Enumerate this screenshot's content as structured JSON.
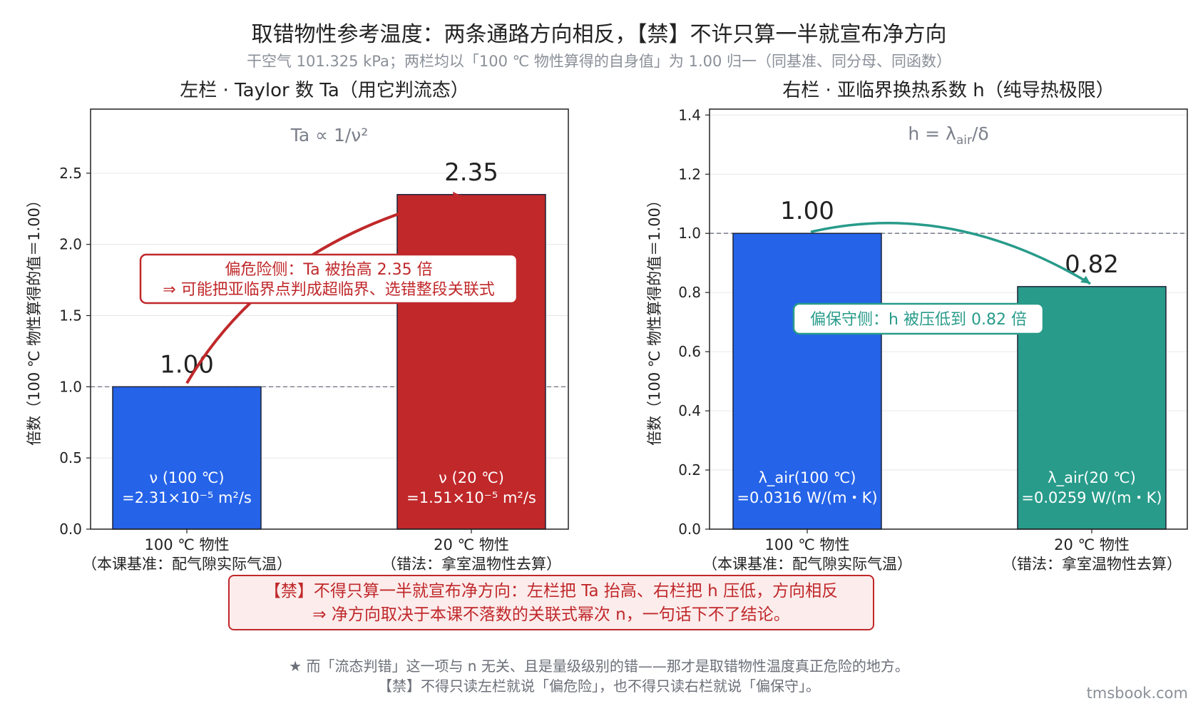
{
  "title": "取错物性参考温度：两条通路方向相反，【禁】不许只算一半就宣布净方向",
  "subtitle": "干空气 101.325 kPa；两栏均以「100 ℃ 物性算得的自身值」为 1.00 归一（同基准、同分母、同函数）",
  "chart_data": [
    {
      "type": "bar",
      "title": "左栏 · Taylor 数 Ta（用它判流态）",
      "formula": "Ta ∝ 1/ν²",
      "ylabel": "倍数（100 ℃ 物性算得的值＝1.00）",
      "ylim": [
        0,
        2.95
      ],
      "yticks": [
        "0.0",
        "0.5",
        "1.0",
        "1.5",
        "2.0",
        "2.5"
      ],
      "baseline": 1.0,
      "categories": [
        {
          "line1": "100 ℃ 物性",
          "line2": "（本课基准：配气隙实际气温）"
        },
        {
          "line1": "20 ℃ 物性",
          "line2": "（错法：拿室温物性去算）"
        }
      ],
      "values": [
        1.0,
        2.35
      ],
      "value_labels": [
        "1.00",
        "2.35"
      ],
      "bar_colors": [
        "#2563e8",
        "#c0282a"
      ],
      "inner_labels": [
        {
          "line1": "ν (100 ℃)",
          "line2": "=2.31×10⁻⁵ m²/s"
        },
        {
          "line1": "ν (20 ℃)",
          "line2": "=1.51×10⁻⁵ m²/s"
        }
      ],
      "annotation": {
        "line1": "偏危险侧：Ta 被抬高 2.35 倍",
        "line2": "⇒ 可能把亚临界点判成超临界、选错整段关联式",
        "color": "#c0282a"
      }
    },
    {
      "type": "bar",
      "title": "右栏 · 亚临界换热系数 h（纯导热极限）",
      "formula_main": "h = λ",
      "formula_sub": "air",
      "formula_tail": "/δ",
      "ylabel": "倍数（100 ℃ 物性算得的值＝1.00）",
      "ylim": [
        0,
        1.42
      ],
      "yticks": [
        "0.0",
        "0.2",
        "0.4",
        "0.6",
        "0.8",
        "1.0",
        "1.2",
        "1.4"
      ],
      "baseline": 1.0,
      "categories": [
        {
          "line1": "100 ℃ 物性",
          "line2": "（本课基准：配气隙实际气温）"
        },
        {
          "line1": "20 ℃ 物性",
          "line2": "（错法：拿室温物性去算）"
        }
      ],
      "values": [
        1.0,
        0.82
      ],
      "value_labels": [
        "1.00",
        "0.82"
      ],
      "bar_colors": [
        "#2563e8",
        "#289b8a"
      ],
      "inner_labels": [
        {
          "line1": "λ_air(100 ℃)",
          "line2": "=0.0316 W/(m・K)"
        },
        {
          "line1": "λ_air(20 ℃)",
          "line2": "=0.0259 W/(m・K)"
        }
      ],
      "annotation": {
        "line1": "偏保守侧：h 被压低到 0.82 倍",
        "color": "#289b8a"
      }
    }
  ],
  "warning": {
    "line1": "【禁】不得只算一半就宣布净方向：左栏把 Ta 抬高、右栏把 h 压低，方向相反",
    "line2": "⇒ 净方向取决于本课不落数的关联式幂次 n，一句话下不了结论。"
  },
  "footer": {
    "line1": "★ 而「流态判错」这一项与 n 无关、且是量级级别的错——那才是取错物性温度真正危险的地方。",
    "line2": "【禁】不得只读左栏就说「偏危险」，也不得只读右栏就说「偏保守」。"
  },
  "watermark": "tmsbook.com"
}
